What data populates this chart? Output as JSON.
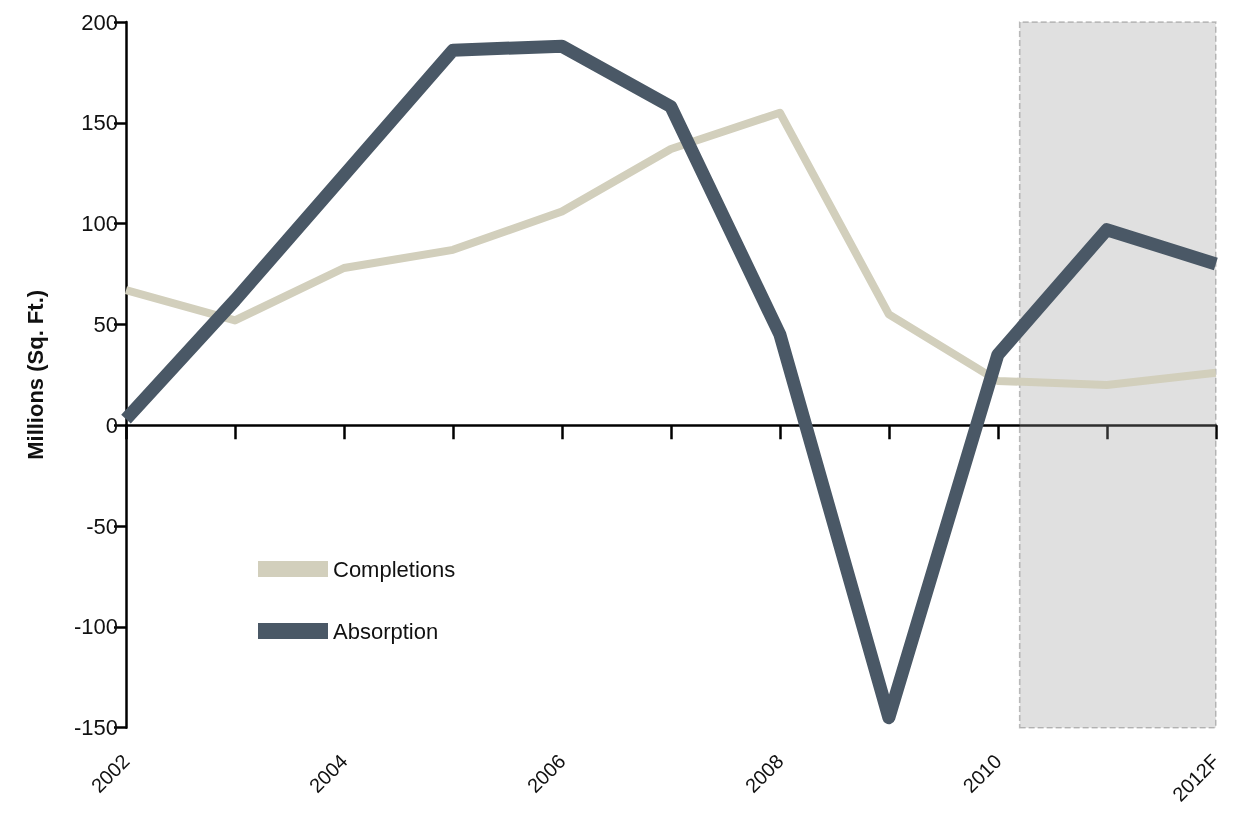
{
  "chart_data": {
    "type": "line",
    "ylabel": "Millions (Sq. Ft.)",
    "x": [
      2002,
      2003,
      2004,
      2005,
      2006,
      2007,
      2008,
      2009,
      2010,
      2011,
      2012
    ],
    "series": [
      {
        "name": "Completions",
        "color": "#d2cfbc",
        "values": [
          67,
          52,
          78,
          87,
          106,
          137,
          155,
          55,
          22,
          20,
          26
        ]
      },
      {
        "name": "Absorption",
        "color": "#4a5866",
        "values": [
          3,
          62,
          124,
          186,
          188,
          158,
          45,
          -145,
          35,
          97,
          80
        ]
      }
    ],
    "xlim": [
      2002,
      2012
    ],
    "xticks": [
      {
        "value": 2002,
        "label": "2002"
      },
      {
        "value": 2003,
        "label": null
      },
      {
        "value": 2004,
        "label": "2004"
      },
      {
        "value": 2005,
        "label": null
      },
      {
        "value": 2006,
        "label": "2006"
      },
      {
        "value": 2007,
        "label": null
      },
      {
        "value": 2008,
        "label": "2008"
      },
      {
        "value": 2009,
        "label": null
      },
      {
        "value": 2010,
        "label": "2010"
      },
      {
        "value": 2011,
        "label": null
      },
      {
        "value": 2012,
        "label": "2012F"
      }
    ],
    "ylim": [
      -150,
      200
    ],
    "yticks": [
      -150,
      -100,
      -50,
      0,
      50,
      100,
      150,
      200
    ],
    "bands": [
      {
        "axis": "x",
        "from": 2010.2,
        "to": 2012,
        "color": "#999999"
      }
    ],
    "legend": "bottom left",
    "marker": "none",
    "line_style": "solid"
  }
}
